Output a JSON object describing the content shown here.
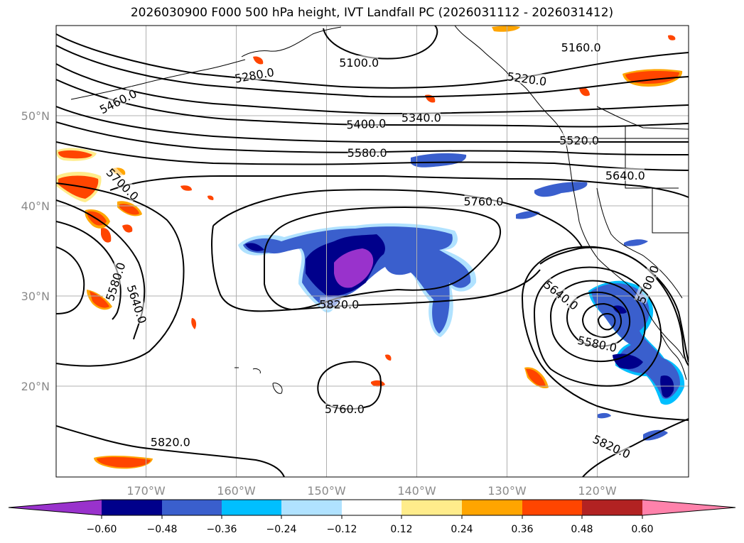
{
  "title": "2026030900 F000 500 hPa height, IVT Landfall PC (2026031112 - 2026031412)",
  "map": {
    "lat_labels": [
      "50°N",
      "40°N",
      "30°N",
      "20°N"
    ],
    "lon_labels": [
      "170°W",
      "160°W",
      "150°W",
      "140°W",
      "130°W",
      "120°W"
    ],
    "contour_labels": [
      {
        "text": "5100.0",
        "lat": 55.9,
        "lon": -146.4,
        "rot": 0
      },
      {
        "text": "5160.0",
        "lat": 57.6,
        "lon": -121.8,
        "rot": 0
      },
      {
        "text": "5280.0",
        "lat": 54.5,
        "lon": -158.0,
        "rot": 10
      },
      {
        "text": "5220.0",
        "lat": 54.1,
        "lon": -127.8,
        "rot": -8
      },
      {
        "text": "5460.0",
        "lat": 51.6,
        "lon": -173.1,
        "rot": 27
      },
      {
        "text": "5340.0",
        "lat": 49.8,
        "lon": -139.5,
        "rot": 0
      },
      {
        "text": "5400.0",
        "lat": 49.1,
        "lon": -145.6,
        "rot": 2
      },
      {
        "text": "5520.0",
        "lat": 47.3,
        "lon": -122.0,
        "rot": 0
      },
      {
        "text": "5580.0",
        "lat": 45.9,
        "lon": -145.5,
        "rot": 0
      },
      {
        "text": "5640.0",
        "lat": 43.4,
        "lon": -116.9,
        "rot": 0
      },
      {
        "text": "5700.0",
        "lat": 42.4,
        "lon": -172.6,
        "rot": -45
      },
      {
        "text": "5760.0",
        "lat": 40.5,
        "lon": -132.6,
        "rot": 0
      },
      {
        "text": "5580.0",
        "lat": 31.6,
        "lon": -173.4,
        "rot": 72
      },
      {
        "text": "5640.0",
        "lat": 29.1,
        "lon": -171.0,
        "rot": -72
      },
      {
        "text": "5820.0",
        "lat": 29.1,
        "lon": -148.6,
        "rot": 0
      },
      {
        "text": "5640.0",
        "lat": 30.1,
        "lon": -124.0,
        "rot": -38
      },
      {
        "text": "5700.0",
        "lat": 31.3,
        "lon": -114.4,
        "rot": 68
      },
      {
        "text": "5580.0",
        "lat": 24.7,
        "lon": -120.0,
        "rot": -12
      },
      {
        "text": "5760.0",
        "lat": 17.5,
        "lon": -148.0,
        "rot": 0
      },
      {
        "text": "5820.0",
        "lat": 13.8,
        "lon": -167.3,
        "rot": 0
      },
      {
        "text": "5820.0",
        "lat": 13.3,
        "lon": -118.4,
        "rot": -25
      }
    ],
    "colors": {
      "neg_060": "#9932cc",
      "neg_048": "#00008b",
      "neg_036": "#3a5fcd",
      "neg_024": "#00bfff",
      "neg_012": "#b0e2ff",
      "zero": "#ffffff",
      "pos_012": "#ffec8b",
      "pos_024": "#ffa500",
      "pos_036": "#ff4500",
      "pos_048": "#b22222",
      "pos_060": "#ff82ab"
    }
  },
  "colorbar": {
    "ticks": [
      "−0.60",
      "−0.48",
      "−0.36",
      "−0.24",
      "−0.12",
      "0.12",
      "0.24",
      "0.36",
      "0.48",
      "0.60"
    ],
    "colors": [
      "#9932cc",
      "#00008b",
      "#3a5fcd",
      "#00bfff",
      "#b0e2ff",
      "#ffffff",
      "#ffec8b",
      "#ffa500",
      "#ff4500",
      "#b22222",
      "#ff82ab"
    ]
  }
}
